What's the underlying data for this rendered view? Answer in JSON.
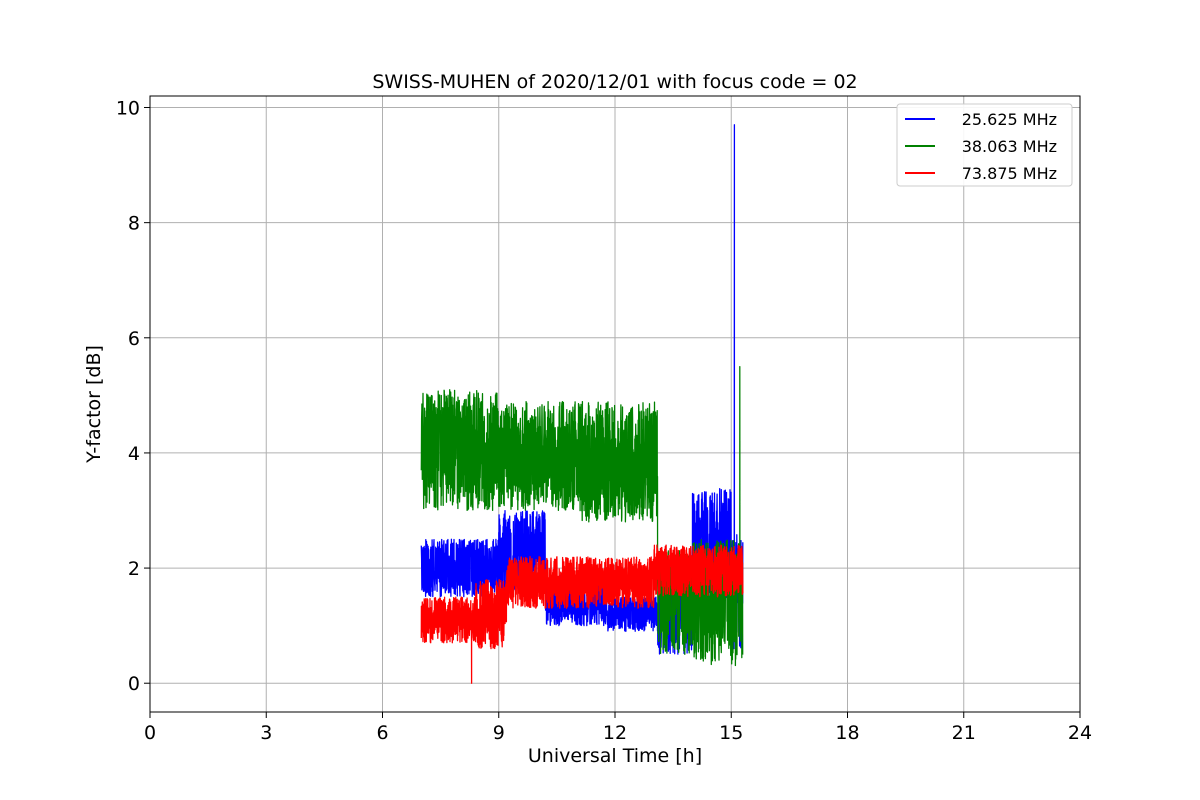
{
  "chart_data": {
    "type": "line",
    "title": "SWISS-MUHEN of 2020/12/01 with focus code = 02",
    "xlabel": "Universal Time [h]",
    "ylabel": "Y-factor [dB]",
    "xlim": [
      0,
      24
    ],
    "ylim": [
      -0.5,
      10.2
    ],
    "xticks": [
      0,
      3,
      6,
      9,
      12,
      15,
      18,
      21,
      24
    ],
    "yticks": [
      0,
      2,
      4,
      6,
      8,
      10
    ],
    "grid": true,
    "legend_position": "top-right",
    "series": [
      {
        "name": "25.625 MHz",
        "color": "#0000ff",
        "segments": [
          {
            "x0": 7.0,
            "x1": 9.0,
            "lo": 1.5,
            "hi": 2.5
          },
          {
            "x0": 9.0,
            "x1": 10.2,
            "lo": 1.6,
            "hi": 3.0
          },
          {
            "x0": 10.2,
            "x1": 11.8,
            "lo": 1.0,
            "hi": 1.9
          },
          {
            "x0": 11.8,
            "x1": 13.1,
            "lo": 0.9,
            "hi": 1.5
          },
          {
            "x0": 13.1,
            "x1": 14.0,
            "lo": 0.5,
            "hi": 2.2
          },
          {
            "x0": 14.0,
            "x1": 15.0,
            "lo": 1.4,
            "hi": 3.4
          },
          {
            "x0": 15.0,
            "x1": 15.3,
            "lo": 0.6,
            "hi": 2.6
          }
        ],
        "peak": {
          "x": 15.08,
          "y": 9.7
        }
      },
      {
        "name": "38.063 MHz",
        "color": "#008000",
        "segments": [
          {
            "x0": 7.0,
            "x1": 9.0,
            "lo": 3.0,
            "hi": 5.1
          },
          {
            "x0": 9.0,
            "x1": 11.0,
            "lo": 3.0,
            "hi": 4.9
          },
          {
            "x0": 11.0,
            "x1": 13.1,
            "lo": 2.8,
            "hi": 4.9
          },
          {
            "x0": 13.1,
            "x1": 14.0,
            "lo": 0.5,
            "hi": 2.3
          },
          {
            "x0": 14.0,
            "x1": 15.3,
            "lo": 0.3,
            "hi": 2.5
          }
        ],
        "peak": {
          "x": 15.22,
          "y": 5.5
        }
      },
      {
        "name": "73.875 MHz",
        "color": "#ff0000",
        "segments": [
          {
            "x0": 7.0,
            "x1": 8.4,
            "lo": 0.7,
            "hi": 1.5
          },
          {
            "x0": 8.4,
            "x1": 9.2,
            "lo": 0.6,
            "hi": 1.8
          },
          {
            "x0": 9.2,
            "x1": 11.0,
            "lo": 1.3,
            "hi": 2.2
          },
          {
            "x0": 11.0,
            "x1": 13.0,
            "lo": 1.3,
            "hi": 2.2
          },
          {
            "x0": 13.0,
            "x1": 15.3,
            "lo": 1.5,
            "hi": 2.4
          }
        ],
        "dip": {
          "x": 8.3,
          "y": 0.0
        }
      }
    ]
  }
}
